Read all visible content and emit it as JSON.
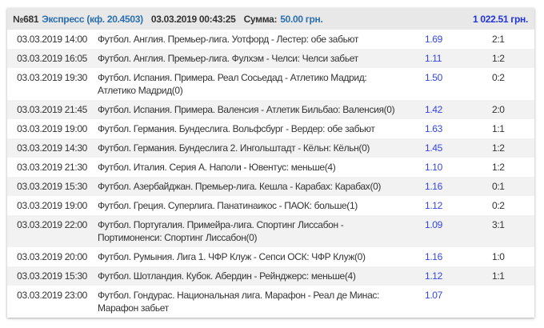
{
  "header": {
    "number": "№681",
    "type": "Экспресс (кф. 20.4503)",
    "datetime": "03.03.2019 00:43:25",
    "sum_label": "Сумма:",
    "sum_value": "50.00 грн.",
    "payout": "1 022.51 грн."
  },
  "colors": {
    "link": "#2a6fb0",
    "odds": "#3344ee",
    "payout": "#2233dd"
  },
  "rows": [
    {
      "date": "03.03.2019 14:00",
      "event": "Футбол. Англия. Премьер-лига. Уотфорд - Лестер: обе забьют",
      "odds": "1.69",
      "score": "2:1"
    },
    {
      "date": "03.03.2019 16:05",
      "event": "Футбол. Англия. Премьер-лига. Фулхэм - Челси: Челси забьет",
      "odds": "1.11",
      "score": "1:2"
    },
    {
      "date": "03.03.2019 19:30",
      "event": "Футбол. Испания. Примера. Реал Сосьедад - Атлетико Мадрид: Атлетико Мадрид(0)",
      "odds": "1.50",
      "score": "0:2"
    },
    {
      "date": "03.03.2019 21:45",
      "event": "Футбол. Испания. Примера. Валенсия - Атлетик Бильбао: Валенсия(0)",
      "odds": "1.42",
      "score": "2:0"
    },
    {
      "date": "03.03.2019 19:00",
      "event": "Футбол. Германия. Бундеслига. Вольфсбург - Вердер: обе забьют",
      "odds": "1.63",
      "score": "1:1"
    },
    {
      "date": "03.03.2019 14:30",
      "event": "Футбол. Германия. Бундеслига 2. Ингольштадт - Кёльн: Кёльн(0)",
      "odds": "1.45",
      "score": "1:2"
    },
    {
      "date": "03.03.2019 21:30",
      "event": "Футбол. Италия. Серия А. Наполи - Ювентус: меньше(4)",
      "odds": "1.10",
      "score": "1:2"
    },
    {
      "date": "03.03.2019 15:30",
      "event": "Футбол. Азербайджан. Премьер-лига. Кешла - Карабах: Карабах(0)",
      "odds": "1.16",
      "score": "0:1"
    },
    {
      "date": "03.03.2019 19:00",
      "event": "Футбол. Греция. Суперлига. Панатинаикос - ПАОК: больше(1)",
      "odds": "1.12",
      "score": "0:2"
    },
    {
      "date": "03.03.2019 22:00",
      "event": "Футбол. Португалия. Примейра-лига. Спортинг Лиссабон - Портимоненси: Спортинг Лиссабон(0)",
      "odds": "1.09",
      "score": "3:1"
    },
    {
      "date": "03.03.2019 20:00",
      "event": "Футбол. Румыния. Лига 1. ЧФР Клуж - Сепси ОСК: ЧФР Клуж(0)",
      "odds": "1.16",
      "score": "1:0"
    },
    {
      "date": "03.03.2019 15:30",
      "event": "Футбол. Шотландия. Кубок. Абердин - Рейнджерс: меньше(4)",
      "odds": "1.12",
      "score": "1:1"
    },
    {
      "date": "03.03.2019 23:00",
      "event": "Футбол. Гондурас. Национальная лига. Марафон - Реал де Минас: Марафон забьет",
      "odds": "1.07",
      "score": ""
    }
  ]
}
